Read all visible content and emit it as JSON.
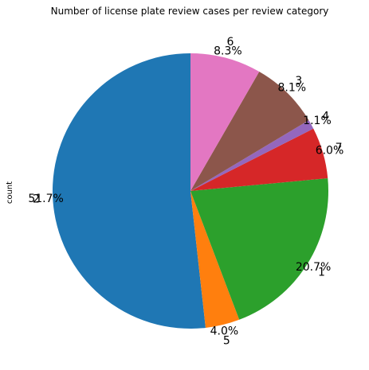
{
  "chart_data": {
    "type": "pie",
    "title": "Number of license plate review cases per review category",
    "ylabel": "count",
    "start_angle_deg": 90,
    "direction": "counterclockwise",
    "slices": [
      {
        "label": "2",
        "percent": 51.7,
        "pct_label": "51.7%",
        "color": "#1f77b4"
      },
      {
        "label": "5",
        "percent": 4.0,
        "pct_label": "4.0%",
        "color": "#ff7f0e"
      },
      {
        "label": "1",
        "percent": 20.7,
        "pct_label": "20.7%",
        "color": "#2ca02c"
      },
      {
        "label": "7",
        "percent": 6.0,
        "pct_label": "6.0%",
        "color": "#d62728"
      },
      {
        "label": "4",
        "percent": 1.1,
        "pct_label": "1.1%",
        "color": "#9467bd"
      },
      {
        "label": "3",
        "percent": 8.1,
        "pct_label": "8.1%",
        "color": "#8c564b"
      },
      {
        "label": "6",
        "percent": 8.3,
        "pct_label": "8.3%",
        "color": "#e377c2"
      }
    ]
  }
}
